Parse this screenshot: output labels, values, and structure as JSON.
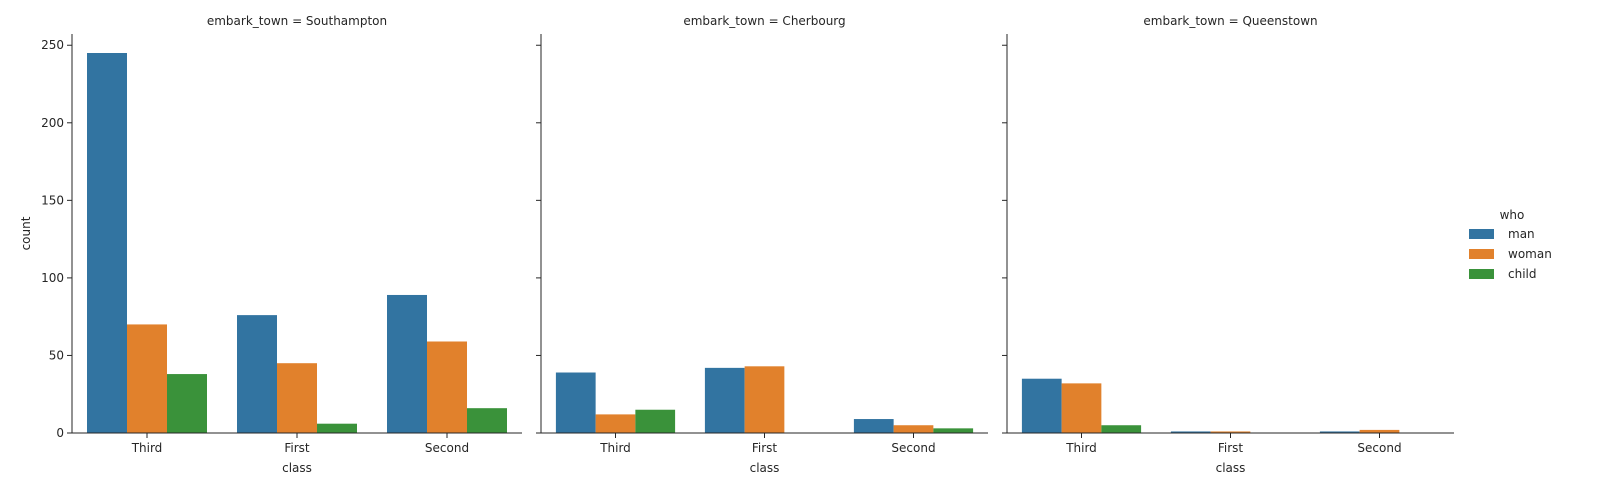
{
  "chart_data": {
    "type": "bar",
    "facet_variable": "embark_town",
    "facets": [
      {
        "title": "embark_town = Southampton",
        "categories": [
          "Third",
          "First",
          "Second"
        ],
        "series": [
          {
            "name": "man",
            "values": [
              245,
              76,
              89
            ]
          },
          {
            "name": "woman",
            "values": [
              70,
              45,
              59
            ]
          },
          {
            "name": "child",
            "values": [
              38,
              6,
              16
            ]
          }
        ]
      },
      {
        "title": "embark_town = Cherbourg",
        "categories": [
          "Third",
          "First",
          "Second"
        ],
        "series": [
          {
            "name": "man",
            "values": [
              39,
              42,
              9
            ]
          },
          {
            "name": "woman",
            "values": [
              12,
              43,
              5
            ]
          },
          {
            "name": "child",
            "values": [
              15,
              0,
              3
            ]
          }
        ]
      },
      {
        "title": "embark_town = Queenstown",
        "categories": [
          "Third",
          "First",
          "Second"
        ],
        "series": [
          {
            "name": "man",
            "values": [
              35,
              1,
              1
            ]
          },
          {
            "name": "woman",
            "values": [
              32,
              1,
              2
            ]
          },
          {
            "name": "child",
            "values": [
              5,
              0,
              0
            ]
          }
        ]
      }
    ],
    "xlabel": "class",
    "ylabel": "count",
    "ylim": [
      0,
      257.25
    ],
    "yticks": [
      0,
      50,
      100,
      150,
      200,
      250
    ],
    "legend": {
      "title": "who",
      "placement": "right",
      "entries": [
        "man",
        "woman",
        "child"
      ]
    },
    "colors": {
      "man": "#3274a1",
      "woman": "#e1812c",
      "child": "#3a923a"
    },
    "grid": false
  }
}
